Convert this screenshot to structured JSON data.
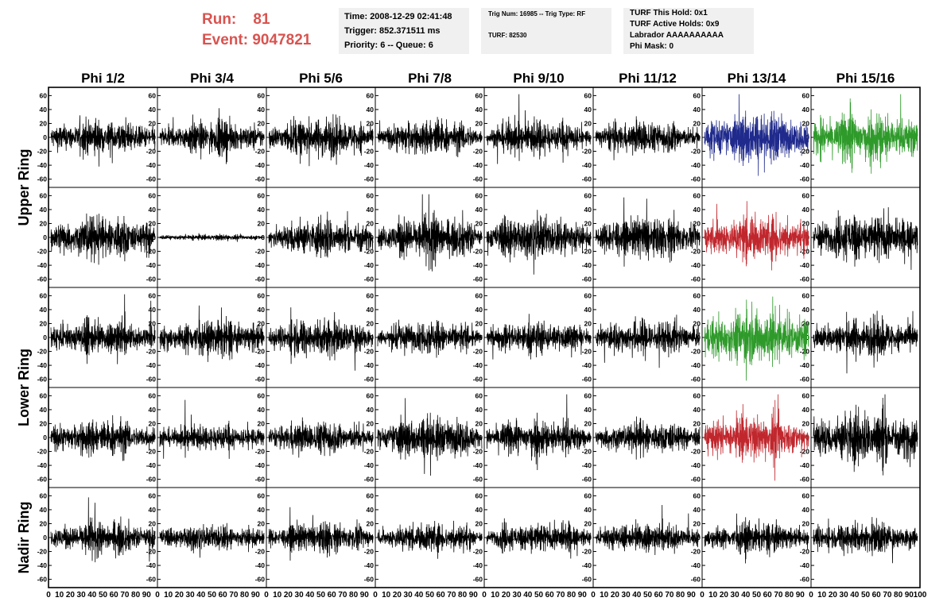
{
  "run_info": {
    "run_label": "Run:",
    "run_value": "81",
    "event_label": "Event:",
    "event_value": "9047821"
  },
  "info_box_1": {
    "time": "Time: 2008-12-29 02:41:48",
    "trigger": "Trigger: 852.371511 ms",
    "priority": "Priority: 6 -- Queue: 6"
  },
  "info_box_2": {
    "trig": "Trig Num: 16985 -- Trig Type: RF",
    "turf": "TURF: 82530"
  },
  "info_box_3": {
    "hold": "TURF This Hold: 0x1",
    "active": "TURF Active Holds: 0x9",
    "labrador": "Labrador AAAAAAAAAA",
    "mask": "Phi Mask: 0"
  },
  "chart_data": {
    "type": "line",
    "column_headers": [
      "Phi 1/2",
      "Phi 3/4",
      "Phi 5/6",
      "Phi 7/8",
      "Phi 9/10",
      "Phi 11/12",
      "Phi 13/14",
      "Phi 15/16"
    ],
    "ring_labels": [
      {
        "label": "Upper Ring",
        "rows": [
          0,
          1
        ]
      },
      {
        "label": "Lower Ring",
        "rows": [
          2,
          3
        ]
      },
      {
        "label": "Nadir Ring",
        "rows": [
          4
        ]
      }
    ],
    "xlim": [
      0,
      100
    ],
    "ylim": [
      -65,
      65
    ],
    "y_ticks": [
      60,
      40,
      20,
      0,
      -20,
      -40,
      -60
    ],
    "x_tick_labels": [
      "0",
      "10",
      "20",
      "30",
      "40",
      "50",
      "60",
      "70",
      "80",
      "90",
      "100"
    ],
    "waveform_points": 500,
    "colors": {
      "default": "#000000",
      "blue": "#1f2a8c",
      "green": "#2e9a2a",
      "red": "#c0272d"
    },
    "channels": [
      {
        "row": 0,
        "col": 0,
        "amp": 12,
        "color": "default"
      },
      {
        "row": 0,
        "col": 1,
        "amp": 11,
        "color": "default"
      },
      {
        "row": 0,
        "col": 2,
        "amp": 13,
        "color": "default"
      },
      {
        "row": 0,
        "col": 3,
        "amp": 12,
        "color": "default"
      },
      {
        "row": 0,
        "col": 4,
        "amp": 12,
        "color": "default"
      },
      {
        "row": 0,
        "col": 5,
        "amp": 11,
        "color": "default"
      },
      {
        "row": 0,
        "col": 6,
        "amp": 17,
        "color": "blue"
      },
      {
        "row": 0,
        "col": 7,
        "amp": 18,
        "color": "green"
      },
      {
        "row": 1,
        "col": 0,
        "amp": 15,
        "color": "default"
      },
      {
        "row": 1,
        "col": 1,
        "amp": 2,
        "color": "default"
      },
      {
        "row": 1,
        "col": 2,
        "amp": 13,
        "color": "default"
      },
      {
        "row": 1,
        "col": 3,
        "amp": 15,
        "color": "default"
      },
      {
        "row": 1,
        "col": 4,
        "amp": 15,
        "color": "default"
      },
      {
        "row": 1,
        "col": 5,
        "amp": 14,
        "color": "default"
      },
      {
        "row": 1,
        "col": 6,
        "amp": 16,
        "color": "red"
      },
      {
        "row": 1,
        "col": 7,
        "amp": 16,
        "color": "default"
      },
      {
        "row": 2,
        "col": 0,
        "amp": 12,
        "color": "default"
      },
      {
        "row": 2,
        "col": 1,
        "amp": 12,
        "color": "default"
      },
      {
        "row": 2,
        "col": 2,
        "amp": 13,
        "color": "default"
      },
      {
        "row": 2,
        "col": 3,
        "amp": 11,
        "color": "default"
      },
      {
        "row": 2,
        "col": 4,
        "amp": 11,
        "color": "default"
      },
      {
        "row": 2,
        "col": 5,
        "amp": 12,
        "color": "default"
      },
      {
        "row": 2,
        "col": 6,
        "amp": 19,
        "color": "green"
      },
      {
        "row": 2,
        "col": 7,
        "amp": 13,
        "color": "default"
      },
      {
        "row": 3,
        "col": 0,
        "amp": 12,
        "color": "default"
      },
      {
        "row": 3,
        "col": 1,
        "amp": 9,
        "color": "default"
      },
      {
        "row": 3,
        "col": 2,
        "amp": 11,
        "color": "default"
      },
      {
        "row": 3,
        "col": 3,
        "amp": 14,
        "color": "default"
      },
      {
        "row": 3,
        "col": 4,
        "amp": 13,
        "color": "default"
      },
      {
        "row": 3,
        "col": 5,
        "amp": 11,
        "color": "default"
      },
      {
        "row": 3,
        "col": 6,
        "amp": 15,
        "color": "red"
      },
      {
        "row": 3,
        "col": 7,
        "amp": 19,
        "color": "default"
      },
      {
        "row": 4,
        "col": 0,
        "amp": 11,
        "color": "default"
      },
      {
        "row": 4,
        "col": 1,
        "amp": 9,
        "color": "default"
      },
      {
        "row": 4,
        "col": 2,
        "amp": 10,
        "color": "default"
      },
      {
        "row": 4,
        "col": 3,
        "amp": 10,
        "color": "default"
      },
      {
        "row": 4,
        "col": 4,
        "amp": 10,
        "color": "default"
      },
      {
        "row": 4,
        "col": 5,
        "amp": 10,
        "color": "default"
      },
      {
        "row": 4,
        "col": 6,
        "amp": 10,
        "color": "default"
      },
      {
        "row": 4,
        "col": 7,
        "amp": 11,
        "color": "default"
      }
    ]
  }
}
